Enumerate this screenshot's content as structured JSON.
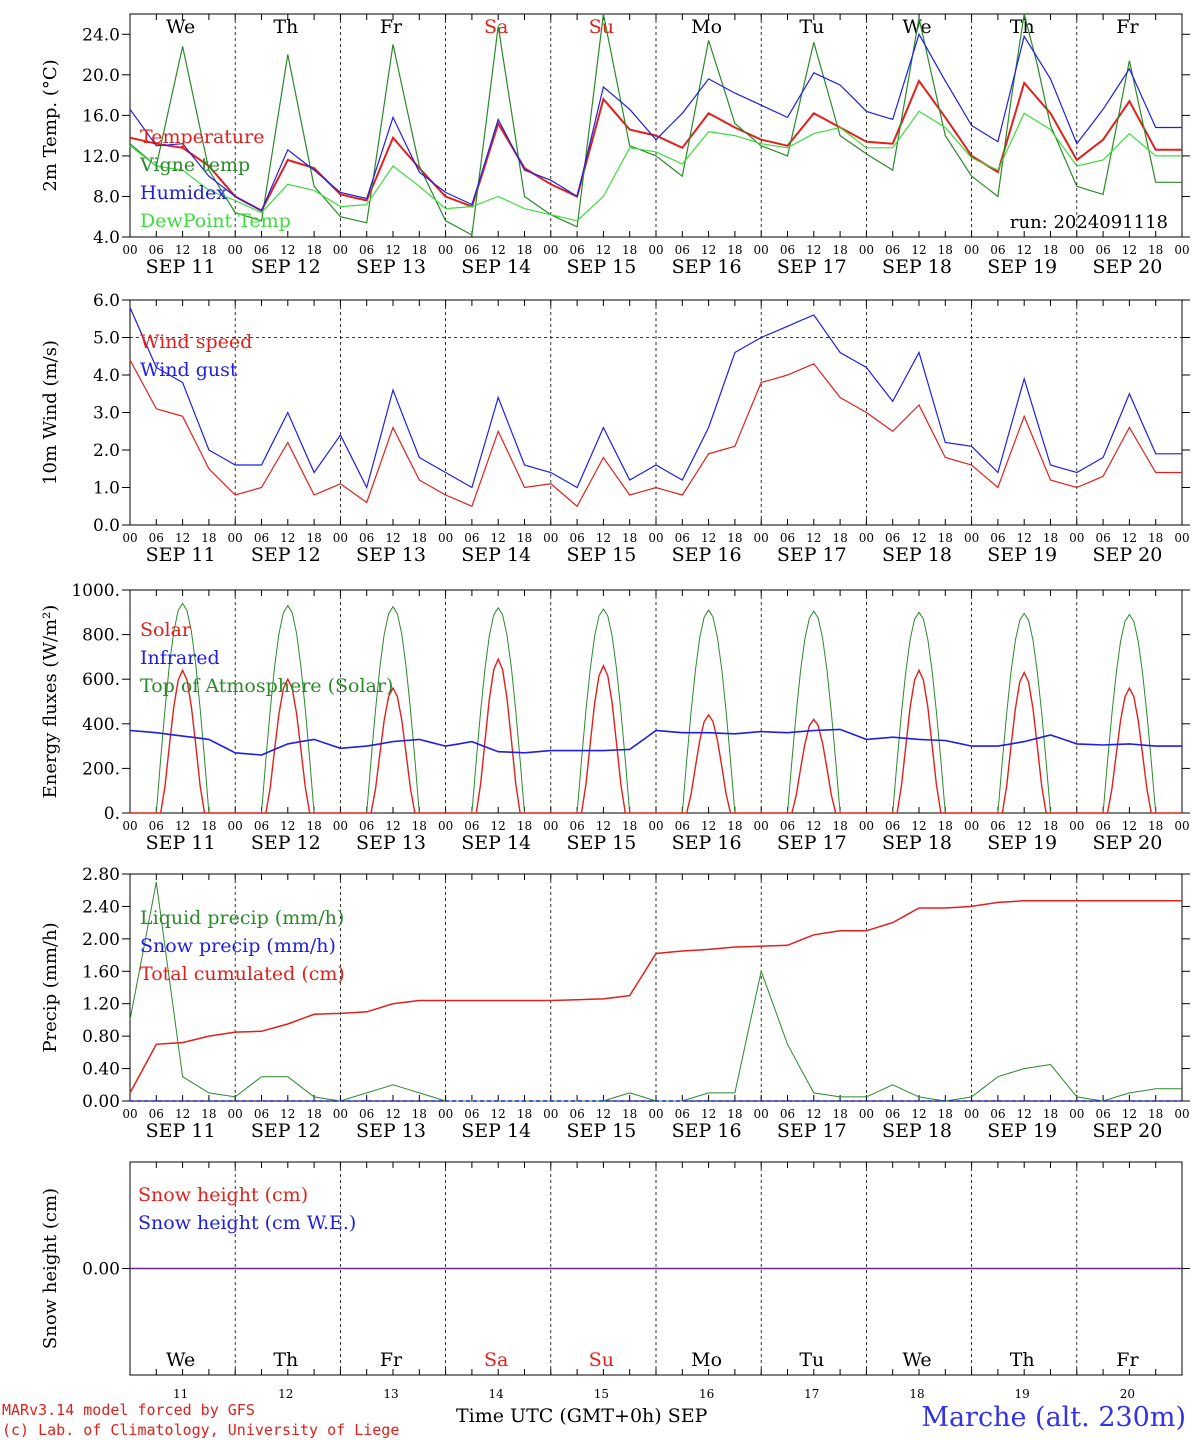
{
  "chart_data": [
    {
      "type": "line",
      "ylabel": "2m Temp. (°C)",
      "ylim": [
        4,
        26
      ],
      "yticks": [
        "4.0",
        "8.0",
        "12.0",
        "16.0",
        "20.0",
        "24.0"
      ],
      "annotation": "run: 2024091118",
      "x_hours": [
        0,
        6,
        12,
        18,
        24,
        30,
        36,
        42,
        48,
        54,
        60,
        66,
        72,
        78,
        84,
        90,
        96,
        102,
        108,
        114,
        120,
        126,
        132,
        138,
        144,
        150,
        156,
        162,
        168,
        174,
        180,
        186,
        192,
        198,
        204,
        210,
        216,
        222,
        228,
        234
      ],
      "series": [
        {
          "name": "Temperature",
          "color": "#e0201b",
          "values": [
            13.8,
            13.2,
            12.8,
            11.0,
            8.0,
            6.6,
            11.6,
            10.8,
            8.2,
            7.6,
            13.8,
            10.8,
            8.0,
            7.0,
            15.2,
            10.8,
            9.2,
            8.0,
            17.6,
            14.6,
            14.0,
            12.8,
            16.2,
            14.8,
            13.6,
            13.0,
            16.2,
            14.8,
            13.4,
            13.2,
            19.4,
            15.8,
            12.0,
            10.4,
            19.2,
            16.2,
            11.6,
            13.6,
            17.4,
            12.6
          ]
        },
        {
          "name": "Vigne temp",
          "color": "#2a8a2a",
          "values": [
            13.2,
            11.0,
            22.8,
            10.6,
            6.4,
            5.6,
            22.0,
            9.0,
            6.0,
            5.4,
            23.0,
            11.0,
            5.6,
            4.2,
            24.8,
            8.0,
            6.2,
            5.0,
            26.0,
            13.0,
            12.0,
            10.0,
            23.4,
            15.2,
            13.0,
            12.0,
            23.2,
            14.0,
            12.2,
            10.6,
            25.6,
            14.0,
            10.0,
            8.0,
            27.0,
            15.0,
            9.0,
            8.2,
            21.4,
            9.4
          ]
        },
        {
          "name": "Humidex",
          "color": "#1e1ee6",
          "values": [
            16.6,
            13.0,
            13.2,
            10.0,
            8.0,
            6.6,
            12.6,
            10.6,
            8.4,
            7.8,
            15.8,
            10.4,
            8.4,
            7.2,
            15.6,
            10.6,
            9.6,
            8.0,
            18.8,
            16.6,
            13.6,
            16.2,
            19.6,
            18.2,
            17.0,
            15.8,
            20.2,
            19.0,
            16.4,
            15.6,
            24.0,
            19.4,
            15.0,
            13.4,
            23.8,
            19.6,
            13.2,
            16.6,
            20.6,
            14.8
          ]
        },
        {
          "name": "DewPoint Temp",
          "color": "#3bdc3b",
          "values": [
            13.0,
            11.0,
            10.6,
            8.6,
            7.6,
            6.4,
            9.2,
            8.6,
            7.0,
            7.2,
            11.0,
            9.0,
            6.8,
            7.0,
            8.0,
            6.8,
            6.2,
            5.6,
            8.0,
            12.8,
            12.4,
            11.2,
            14.4,
            14.0,
            13.2,
            12.8,
            14.2,
            14.8,
            12.8,
            12.8,
            16.4,
            14.8,
            11.8,
            10.6,
            16.2,
            14.6,
            11.0,
            11.6,
            14.2,
            12.0
          ]
        }
      ]
    },
    {
      "type": "line",
      "ylabel": "10m Wind (m/s)",
      "ylim": [
        0,
        6
      ],
      "yticks": [
        "0.0",
        "1.0",
        "2.0",
        "3.0",
        "4.0",
        "5.0",
        "6.0"
      ],
      "x_hours": [
        0,
        6,
        12,
        18,
        24,
        30,
        36,
        42,
        48,
        54,
        60,
        66,
        72,
        78,
        84,
        90,
        96,
        102,
        108,
        114,
        120,
        126,
        132,
        138,
        144,
        150,
        156,
        162,
        168,
        174,
        180,
        186,
        192,
        198,
        204,
        210,
        216,
        222,
        228,
        234
      ],
      "series": [
        {
          "name": "Wind speed",
          "color": "#e0201b",
          "values": [
            4.4,
            3.1,
            2.9,
            1.5,
            0.8,
            1.0,
            2.2,
            0.8,
            1.1,
            0.6,
            2.6,
            1.2,
            0.8,
            0.5,
            2.5,
            1.0,
            1.1,
            0.5,
            1.8,
            0.8,
            1.0,
            0.8,
            1.9,
            2.1,
            3.8,
            4.0,
            4.3,
            3.4,
            3.0,
            2.5,
            3.2,
            1.8,
            1.6,
            1.0,
            2.9,
            1.2,
            1.0,
            1.3,
            2.6,
            1.4
          ]
        },
        {
          "name": "Wind gust",
          "color": "#1e1ee6",
          "values": [
            5.8,
            4.2,
            3.8,
            2.0,
            1.6,
            1.6,
            3.0,
            1.4,
            2.4,
            1.0,
            3.6,
            1.8,
            1.4,
            1.0,
            3.4,
            1.6,
            1.4,
            1.0,
            2.6,
            1.2,
            1.6,
            1.2,
            2.6,
            4.6,
            5.0,
            5.3,
            5.6,
            4.6,
            4.2,
            3.3,
            4.6,
            2.2,
            2.1,
            1.4,
            3.9,
            1.6,
            1.4,
            1.8,
            3.5,
            1.9
          ]
        }
      ]
    },
    {
      "type": "line",
      "ylabel": "Energy fluxes (W/m²)",
      "ylim": [
        0,
        1000
      ],
      "yticks": [
        "0.",
        "200.",
        "400.",
        "600.",
        "800.",
        "1000."
      ],
      "daily_peak_toa": [
        940,
        930,
        925,
        920,
        915,
        910,
        905,
        900,
        895,
        890
      ],
      "daily_peak_solar": [
        640,
        600,
        560,
        690,
        660,
        440,
        420,
        640,
        630,
        560
      ],
      "series": [
        {
          "name": "Solar",
          "color": "#e0201b"
        },
        {
          "name": "Infrared",
          "color": "#1e1ee6",
          "values": [
            370,
            360,
            345,
            330,
            270,
            260,
            310,
            330,
            290,
            300,
            320,
            330,
            300,
            320,
            275,
            270,
            280,
            280,
            280,
            285,
            370,
            360,
            360,
            355,
            365,
            360,
            370,
            375,
            330,
            340,
            330,
            325,
            300,
            300,
            320,
            350,
            310,
            305,
            310,
            300
          ]
        },
        {
          "name": "Top of Atmosphere (Solar)",
          "color": "#2a8a2a"
        }
      ]
    },
    {
      "type": "line",
      "ylabel": "Precip (mm/h)",
      "ylim": [
        0,
        2.8
      ],
      "yticks": [
        "0.00",
        "0.40",
        "0.80",
        "1.20",
        "1.60",
        "2.00",
        "2.40",
        "2.80"
      ],
      "series": [
        {
          "name": "Liquid precip (mm/h)",
          "color": "#2a8a2a",
          "values": [
            1.0,
            2.7,
            0.3,
            0.1,
            0.05,
            0.3,
            0.3,
            0.05,
            0.0,
            0.1,
            0.2,
            0.1,
            0.0,
            0.0,
            0.0,
            0.0,
            0.0,
            0.0,
            0.0,
            0.1,
            0.0,
            0.0,
            0.1,
            0.1,
            1.6,
            0.7,
            0.1,
            0.05,
            0.05,
            0.2,
            0.05,
            0.0,
            0.05,
            0.3,
            0.4,
            0.45,
            0.05,
            0.0,
            0.1,
            0.15
          ]
        },
        {
          "name": "Snow precip (mm/h)",
          "color": "#1e1ee6"
        },
        {
          "name": "Total cumulated (cm)",
          "color": "#e0201b",
          "values": [
            0.1,
            0.7,
            0.72,
            0.8,
            0.85,
            0.86,
            0.95,
            1.07,
            1.08,
            1.1,
            1.2,
            1.24,
            1.24,
            1.24,
            1.24,
            1.24,
            1.24,
            1.25,
            1.26,
            1.3,
            1.82,
            1.85,
            1.87,
            1.9,
            1.91,
            1.92,
            2.05,
            2.1,
            2.1,
            2.2,
            2.38,
            2.38,
            2.4,
            2.45,
            2.47,
            2.47,
            2.47,
            2.47,
            2.47,
            2.47
          ]
        }
      ]
    },
    {
      "type": "line",
      "ylabel": "Snow height (cm)",
      "yticks": [
        "0.00"
      ],
      "series": [
        {
          "name": "Snow height (cm)",
          "color": "#e0201b",
          "values": [
            0
          ]
        },
        {
          "name": "Snow height (cm W.E.)",
          "color": "#1e1ee6",
          "values": [
            0
          ]
        }
      ]
    }
  ],
  "days": {
    "weekday": [
      "We",
      "Th",
      "Fr",
      "Sa",
      "Su",
      "Mo",
      "Tu",
      "We",
      "Th",
      "Fr"
    ],
    "weekend_color": "#e0201b",
    "dates": [
      "SEP 11",
      "SEP 12",
      "SEP 13",
      "SEP 14",
      "SEP 15",
      "SEP 16",
      "SEP 17",
      "SEP 18",
      "SEP 19",
      "SEP 20"
    ],
    "daynum": [
      "11",
      "12",
      "13",
      "14",
      "15",
      "16",
      "17",
      "18",
      "19",
      "20"
    ],
    "hour_labels": [
      "00",
      "06",
      "12",
      "18"
    ],
    "final_hour": "00"
  },
  "footer": {
    "model": "MARv3.14 model forced by GFS",
    "copyright": "(c) Lab. of Climatology, University of Liege",
    "xtitle": "Time UTC (GMT+0h) SEP",
    "station": "Marche (alt. 230m)"
  }
}
